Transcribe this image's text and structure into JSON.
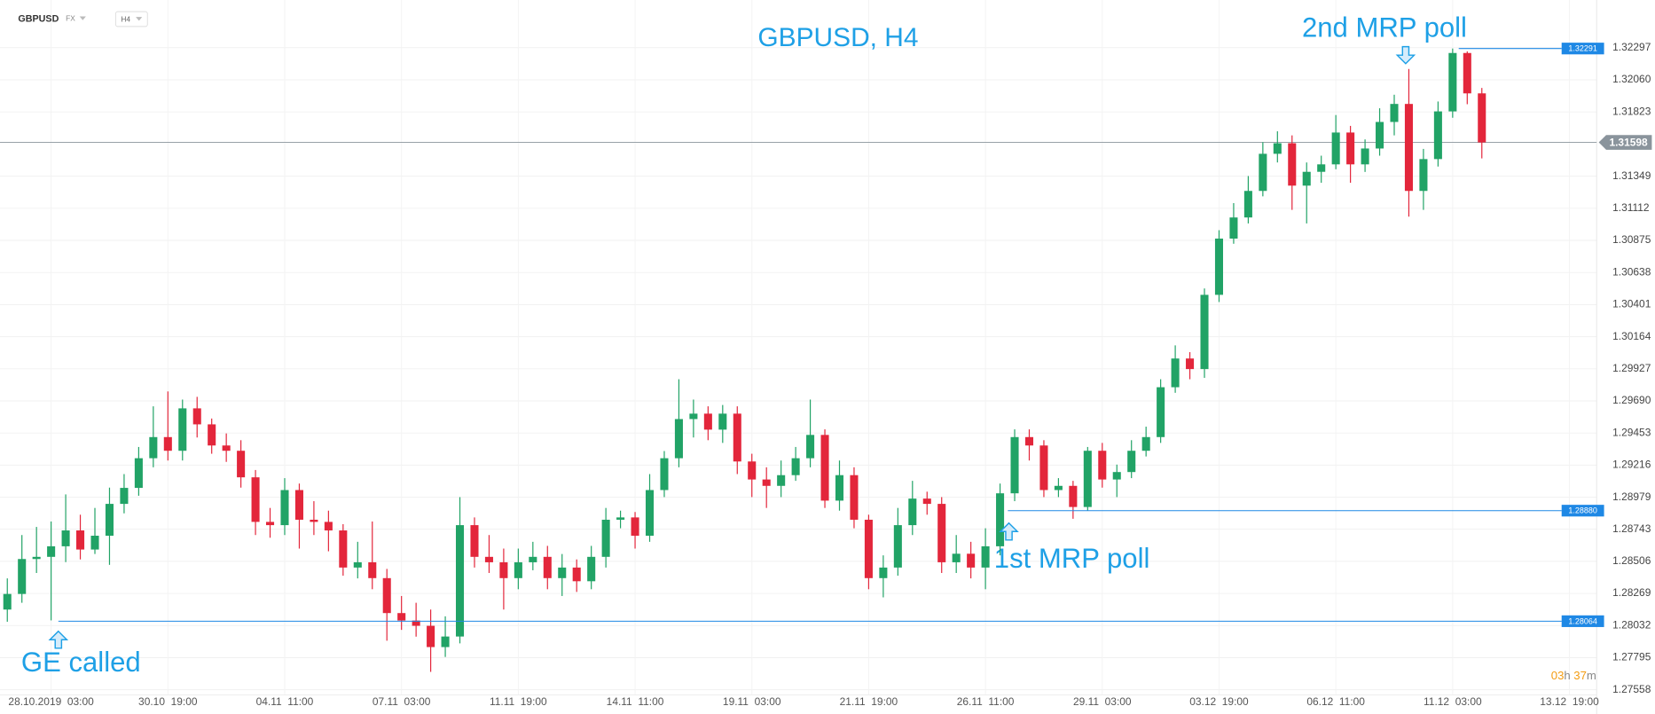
{
  "chart_data": {
    "type": "candlestick",
    "title": "GBPUSD, H4",
    "symbol": "GBPUSD",
    "market": "FX",
    "interval": "H4",
    "up_color": "#21a366",
    "down_color": "#e3263b",
    "grid": true,
    "open": [
      1.2815,
      1.28265,
      1.28523,
      1.28539,
      1.28617,
      1.28734,
      1.28593,
      1.28695,
      1.2893,
      1.29048,
      1.29267,
      1.29423,
      1.29322,
      1.29635,
      1.29517,
      1.29361,
      1.29322,
      1.29126,
      1.28797,
      1.28773,
      1.29032,
      1.28813,
      1.28797,
      1.28734,
      1.2846,
      1.28499,
      1.28382,
      1.28124,
      1.28069,
      1.2803,
      1.27873,
      1.27951,
      1.28773,
      1.28539,
      1.28499,
      1.28382,
      1.28499,
      1.28539,
      1.28382,
      1.2846,
      1.28359,
      1.28539,
      1.28813,
      1.2883,
      1.28695,
      1.29032,
      1.29267,
      1.29556,
      1.29596,
      1.29478,
      1.29596,
      1.29243,
      1.2911,
      1.29063,
      1.29142,
      1.29267,
      1.29439,
      1.28954,
      1.29142,
      1.28813,
      1.28382,
      1.2846,
      1.28773,
      1.28969,
      1.2893,
      1.28499,
      1.28562,
      1.2846,
      1.28617,
      1.29008,
      1.29423,
      1.29361,
      1.29032,
      1.29063,
      1.28907,
      1.29322,
      1.2911,
      1.29165,
      1.29322,
      1.29423,
      1.29791,
      1.30003,
      1.29925,
      1.30473,
      1.30888,
      1.31044,
      1.3124,
      1.31514,
      1.31592,
      1.31279,
      1.31381,
      1.31436,
      1.31671,
      1.31436,
      1.31553,
      1.31749,
      1.31882,
      1.3124,
      1.31475,
      1.31827,
      1.32258,
      1.3196
    ],
    "high": [
      1.2838,
      1.287,
      1.2876,
      1.288,
      1.29,
      1.2885,
      1.289,
      1.2905,
      1.2915,
      1.2935,
      1.2965,
      1.2976,
      1.297,
      1.2972,
      1.2956,
      1.2945,
      1.294,
      1.2918,
      1.289,
      1.2912,
      1.2908,
      1.2895,
      1.2888,
      1.2878,
      1.2865,
      1.288,
      1.2845,
      1.2825,
      1.282,
      1.2815,
      1.281,
      1.2898,
      1.2883,
      1.287,
      1.286,
      1.286,
      1.2865,
      1.2862,
      1.2856,
      1.2852,
      1.2862,
      1.289,
      1.2888,
      1.2887,
      1.2915,
      1.2932,
      1.2985,
      1.297,
      1.2965,
      1.2966,
      1.2965,
      1.293,
      1.292,
      1.2925,
      1.2935,
      1.297,
      1.2948,
      1.2925,
      1.292,
      1.2885,
      1.2855,
      1.289,
      1.291,
      1.2902,
      1.2898,
      1.287,
      1.2865,
      1.2875,
      1.2908,
      1.2948,
      1.2948,
      1.294,
      1.2912,
      1.291,
      1.2935,
      1.2938,
      1.2922,
      1.294,
      1.295,
      1.2985,
      1.301,
      1.3005,
      1.3052,
      1.3095,
      1.3115,
      1.3135,
      1.316,
      1.3168,
      1.3165,
      1.3145,
      1.315,
      1.318,
      1.3172,
      1.3162,
      1.3185,
      1.3195,
      1.3214,
      1.3155,
      1.319,
      1.32291,
      1.3227,
      1.32
    ],
    "low": [
      1.2806,
      1.282,
      1.2842,
      1.2807,
      1.285,
      1.2852,
      1.2856,
      1.2848,
      1.2886,
      1.2899,
      1.292,
      1.2925,
      1.2925,
      1.2942,
      1.293,
      1.2924,
      1.2905,
      1.287,
      1.2868,
      1.287,
      1.286,
      1.287,
      1.2858,
      1.284,
      1.2838,
      1.283,
      1.2792,
      1.28,
      1.2795,
      1.2769,
      1.278,
      1.279,
      1.2846,
      1.2842,
      1.2815,
      1.283,
      1.2844,
      1.283,
      1.2825,
      1.2828,
      1.283,
      1.2846,
      1.2875,
      1.286,
      1.2865,
      1.2898,
      1.292,
      1.2942,
      1.294,
      1.2938,
      1.2915,
      1.2898,
      1.289,
      1.2898,
      1.291,
      1.292,
      1.289,
      1.2888,
      1.2875,
      1.283,
      1.2824,
      1.284,
      1.287,
      1.2885,
      1.2842,
      1.2842,
      1.2838,
      1.283,
      1.2855,
      1.2895,
      1.2925,
      1.2898,
      1.2898,
      1.2882,
      1.2888,
      1.2905,
      1.2898,
      1.2912,
      1.2928,
      1.2938,
      1.2975,
      1.2985,
      1.2986,
      1.3042,
      1.3085,
      1.31,
      1.312,
      1.3145,
      1.311,
      1.31,
      1.313,
      1.314,
      1.313,
      1.3138,
      1.315,
      1.3165,
      1.3105,
      1.311,
      1.3142,
      1.3178,
      1.3188,
      1.3148
    ],
    "close": [
      1.28265,
      1.28523,
      1.28539,
      1.28617,
      1.28734,
      1.28593,
      1.28695,
      1.2893,
      1.29048,
      1.29267,
      1.29423,
      1.29322,
      1.29635,
      1.29517,
      1.29361,
      1.29322,
      1.29126,
      1.28797,
      1.28773,
      1.29032,
      1.28813,
      1.28797,
      1.28734,
      1.2846,
      1.28499,
      1.28382,
      1.28124,
      1.28069,
      1.2803,
      1.27873,
      1.27951,
      1.28773,
      1.28539,
      1.28499,
      1.28382,
      1.28499,
      1.28539,
      1.28382,
      1.2846,
      1.28359,
      1.28539,
      1.28813,
      1.2883,
      1.28695,
      1.29032,
      1.29267,
      1.29556,
      1.29596,
      1.29478,
      1.29596,
      1.29243,
      1.2911,
      1.29063,
      1.29142,
      1.29267,
      1.29439,
      1.28954,
      1.29142,
      1.28813,
      1.28382,
      1.2846,
      1.28773,
      1.28969,
      1.2893,
      1.28499,
      1.28562,
      1.2846,
      1.28617,
      1.29008,
      1.29423,
      1.29361,
      1.29032,
      1.29063,
      1.28907,
      1.29322,
      1.2911,
      1.29165,
      1.29322,
      1.29423,
      1.29791,
      1.30003,
      1.29925,
      1.30473,
      1.30888,
      1.31044,
      1.3124,
      1.31514,
      1.31592,
      1.31279,
      1.31381,
      1.31436,
      1.31671,
      1.31436,
      1.31553,
      1.31749,
      1.31882,
      1.3124,
      1.31475,
      1.31827,
      1.32258,
      1.3196,
      1.31598
    ],
    "xlim": [
      -0.5,
      108.5
    ],
    "xticks": [
      {
        "value": 3,
        "label": "28.10.2019  03:00"
      },
      {
        "value": 11,
        "label": "30.10  19:00"
      },
      {
        "value": 19,
        "label": "04.11  11:00"
      },
      {
        "value": 27,
        "label": "07.11  03:00"
      },
      {
        "value": 35,
        "label": "11.11  19:00"
      },
      {
        "value": 43,
        "label": "14.11  11:00"
      },
      {
        "value": 51,
        "label": "19.11  03:00"
      },
      {
        "value": 59,
        "label": "21.11  19:00"
      },
      {
        "value": 67,
        "label": "26.11  11:00"
      },
      {
        "value": 75,
        "label": "29.11  03:00"
      },
      {
        "value": 83,
        "label": "03.12  19:00"
      },
      {
        "value": 91,
        "label": "06.12  11:00"
      },
      {
        "value": 99,
        "label": "11.12  03:00"
      },
      {
        "value": 107,
        "label": "13.12  19:00"
      }
    ],
    "ylim": [
      1.2752,
      1.3261
    ],
    "yticks": [
      1.32297,
      {
        "value": 1.3206,
        "label": "1.32060"
      },
      1.31823,
      1.31349,
      1.31112,
      1.30875,
      1.30638,
      1.30401,
      1.30164,
      1.29927,
      {
        "value": 1.2969,
        "label": "1.29690"
      },
      1.29453,
      1.29216,
      1.28979,
      1.28743,
      1.28506,
      1.28269,
      1.28032,
      1.27795,
      1.27558
    ],
    "levels": [
      1.28064,
      {
        "value": 1.2888,
        "label": "1.28880"
      },
      1.32291
    ],
    "level_color": "#1e88e5",
    "last_price": 1.31598,
    "annotations": [
      "GE called",
      "1st MRP poll",
      "2nd MRP poll"
    ],
    "annotation_color": "#1ea0e6",
    "countdown": [
      "03",
      "h",
      "37",
      "m"
    ]
  }
}
